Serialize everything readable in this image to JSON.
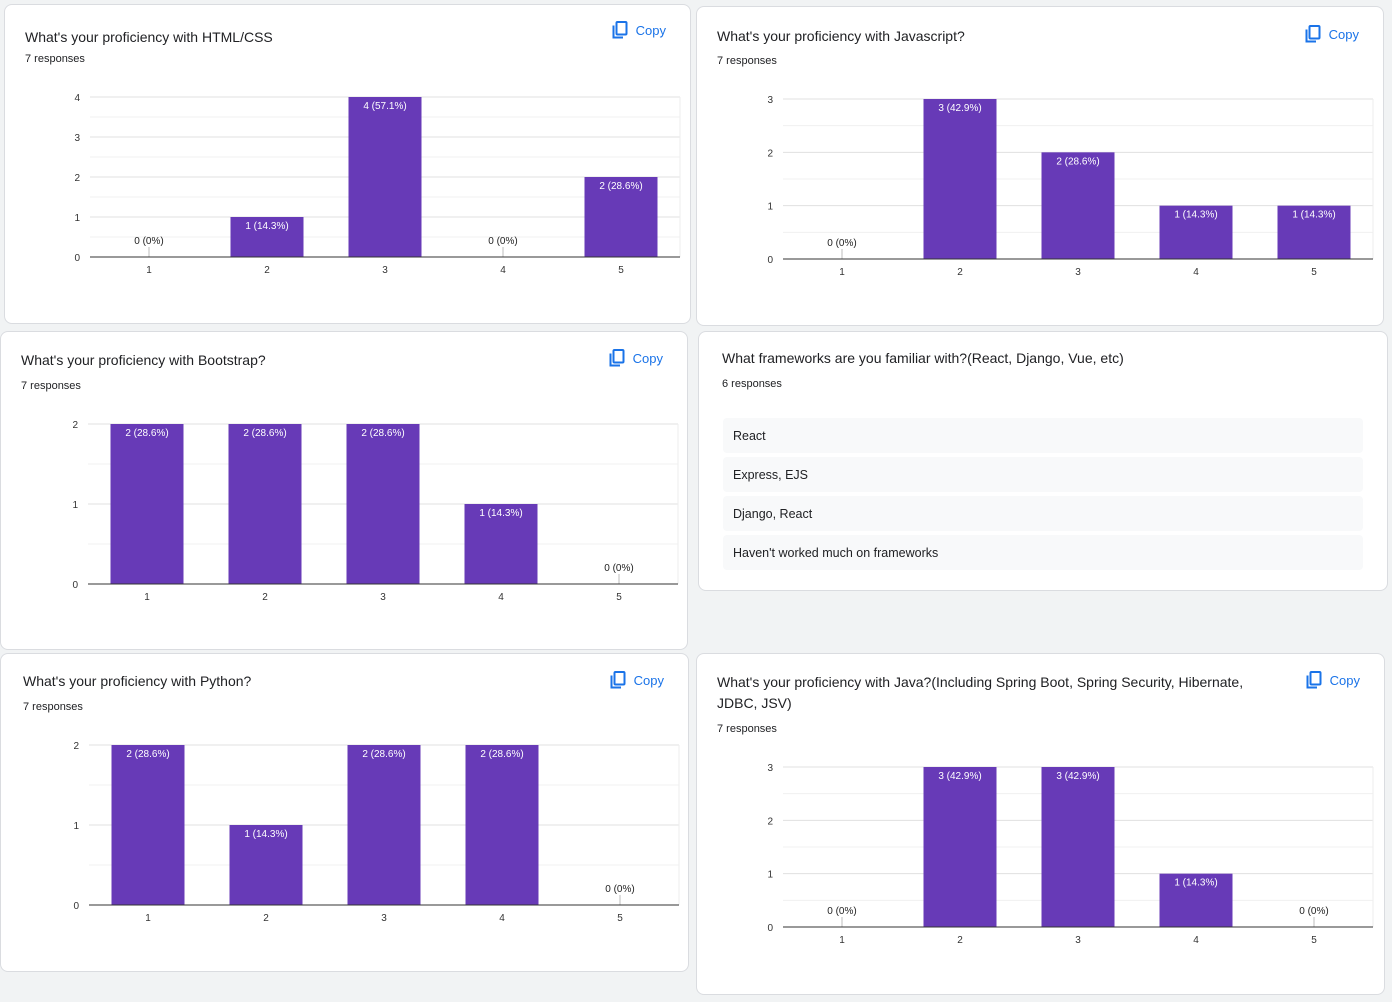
{
  "copy_label": "Copy",
  "colors": {
    "bar": "#673ab7",
    "accent": "#1a73e8",
    "grid": "#e8eaed",
    "axis": "#333333"
  },
  "icons": {
    "copy": "copy-icon"
  },
  "cards": {
    "html": {
      "title": "What's your proficiency with HTML/CSS",
      "responses": "7 responses",
      "chart_data": {
        "type": "bar",
        "categories": [
          "1",
          "2",
          "3",
          "4",
          "5"
        ],
        "values": [
          0,
          1,
          4,
          0,
          2
        ],
        "labels": [
          "0 (0%)",
          "1 (14.3%)",
          "4 (57.1%)",
          "0 (0%)",
          "2 (28.6%)"
        ],
        "yticks": [
          "0",
          "1",
          "2",
          "3",
          "4"
        ],
        "ylim": [
          0,
          4
        ]
      }
    },
    "js": {
      "title": "What's your proficiency with Javascript?",
      "responses": "7 responses",
      "chart_data": {
        "type": "bar",
        "categories": [
          "1",
          "2",
          "3",
          "4",
          "5"
        ],
        "values": [
          0,
          3,
          2,
          1,
          1
        ],
        "labels": [
          "0 (0%)",
          "3 (42.9%)",
          "2 (28.6%)",
          "1 (14.3%)",
          "1 (14.3%)"
        ],
        "yticks": [
          "0",
          "1",
          "2",
          "3"
        ],
        "ylim": [
          0,
          3
        ]
      }
    },
    "bootstrap": {
      "title": "What's your proficiency with Bootstrap?",
      "responses": "7 responses",
      "chart_data": {
        "type": "bar",
        "categories": [
          "1",
          "2",
          "3",
          "4",
          "5"
        ],
        "values": [
          2,
          2,
          2,
          1,
          0
        ],
        "labels": [
          "2 (28.6%)",
          "2 (28.6%)",
          "2 (28.6%)",
          "1 (14.3%)",
          "0 (0%)"
        ],
        "yticks": [
          "0",
          "1",
          "2"
        ],
        "ylim": [
          0,
          2
        ]
      }
    },
    "frameworks": {
      "title": "What frameworks are you familiar with?(React, Django, Vue, etc)",
      "responses": "6 responses",
      "answers": [
        "React",
        "Express, EJS",
        "Django, React",
        "Haven't worked much on frameworks"
      ]
    },
    "python": {
      "title": "What's your proficiency with Python?",
      "responses": "7 responses",
      "chart_data": {
        "type": "bar",
        "categories": [
          "1",
          "2",
          "3",
          "4",
          "5"
        ],
        "values": [
          2,
          1,
          2,
          2,
          0
        ],
        "labels": [
          "2 (28.6%)",
          "1 (14.3%)",
          "2 (28.6%)",
          "2 (28.6%)",
          "0 (0%)"
        ],
        "yticks": [
          "0",
          "1",
          "2"
        ],
        "ylim": [
          0,
          2
        ]
      }
    },
    "java": {
      "title": "What's your proficiency with Java?(Including Spring Boot, Spring Security, Hibernate, JDBC, JSV)",
      "responses": "7 responses",
      "chart_data": {
        "type": "bar",
        "categories": [
          "1",
          "2",
          "3",
          "4",
          "5"
        ],
        "values": [
          0,
          3,
          3,
          1,
          0
        ],
        "labels": [
          "0 (0%)",
          "3 (42.9%)",
          "3 (42.9%)",
          "1 (14.3%)",
          "0 (0%)"
        ],
        "yticks": [
          "0",
          "1",
          "2",
          "3"
        ],
        "ylim": [
          0,
          3
        ]
      }
    }
  }
}
